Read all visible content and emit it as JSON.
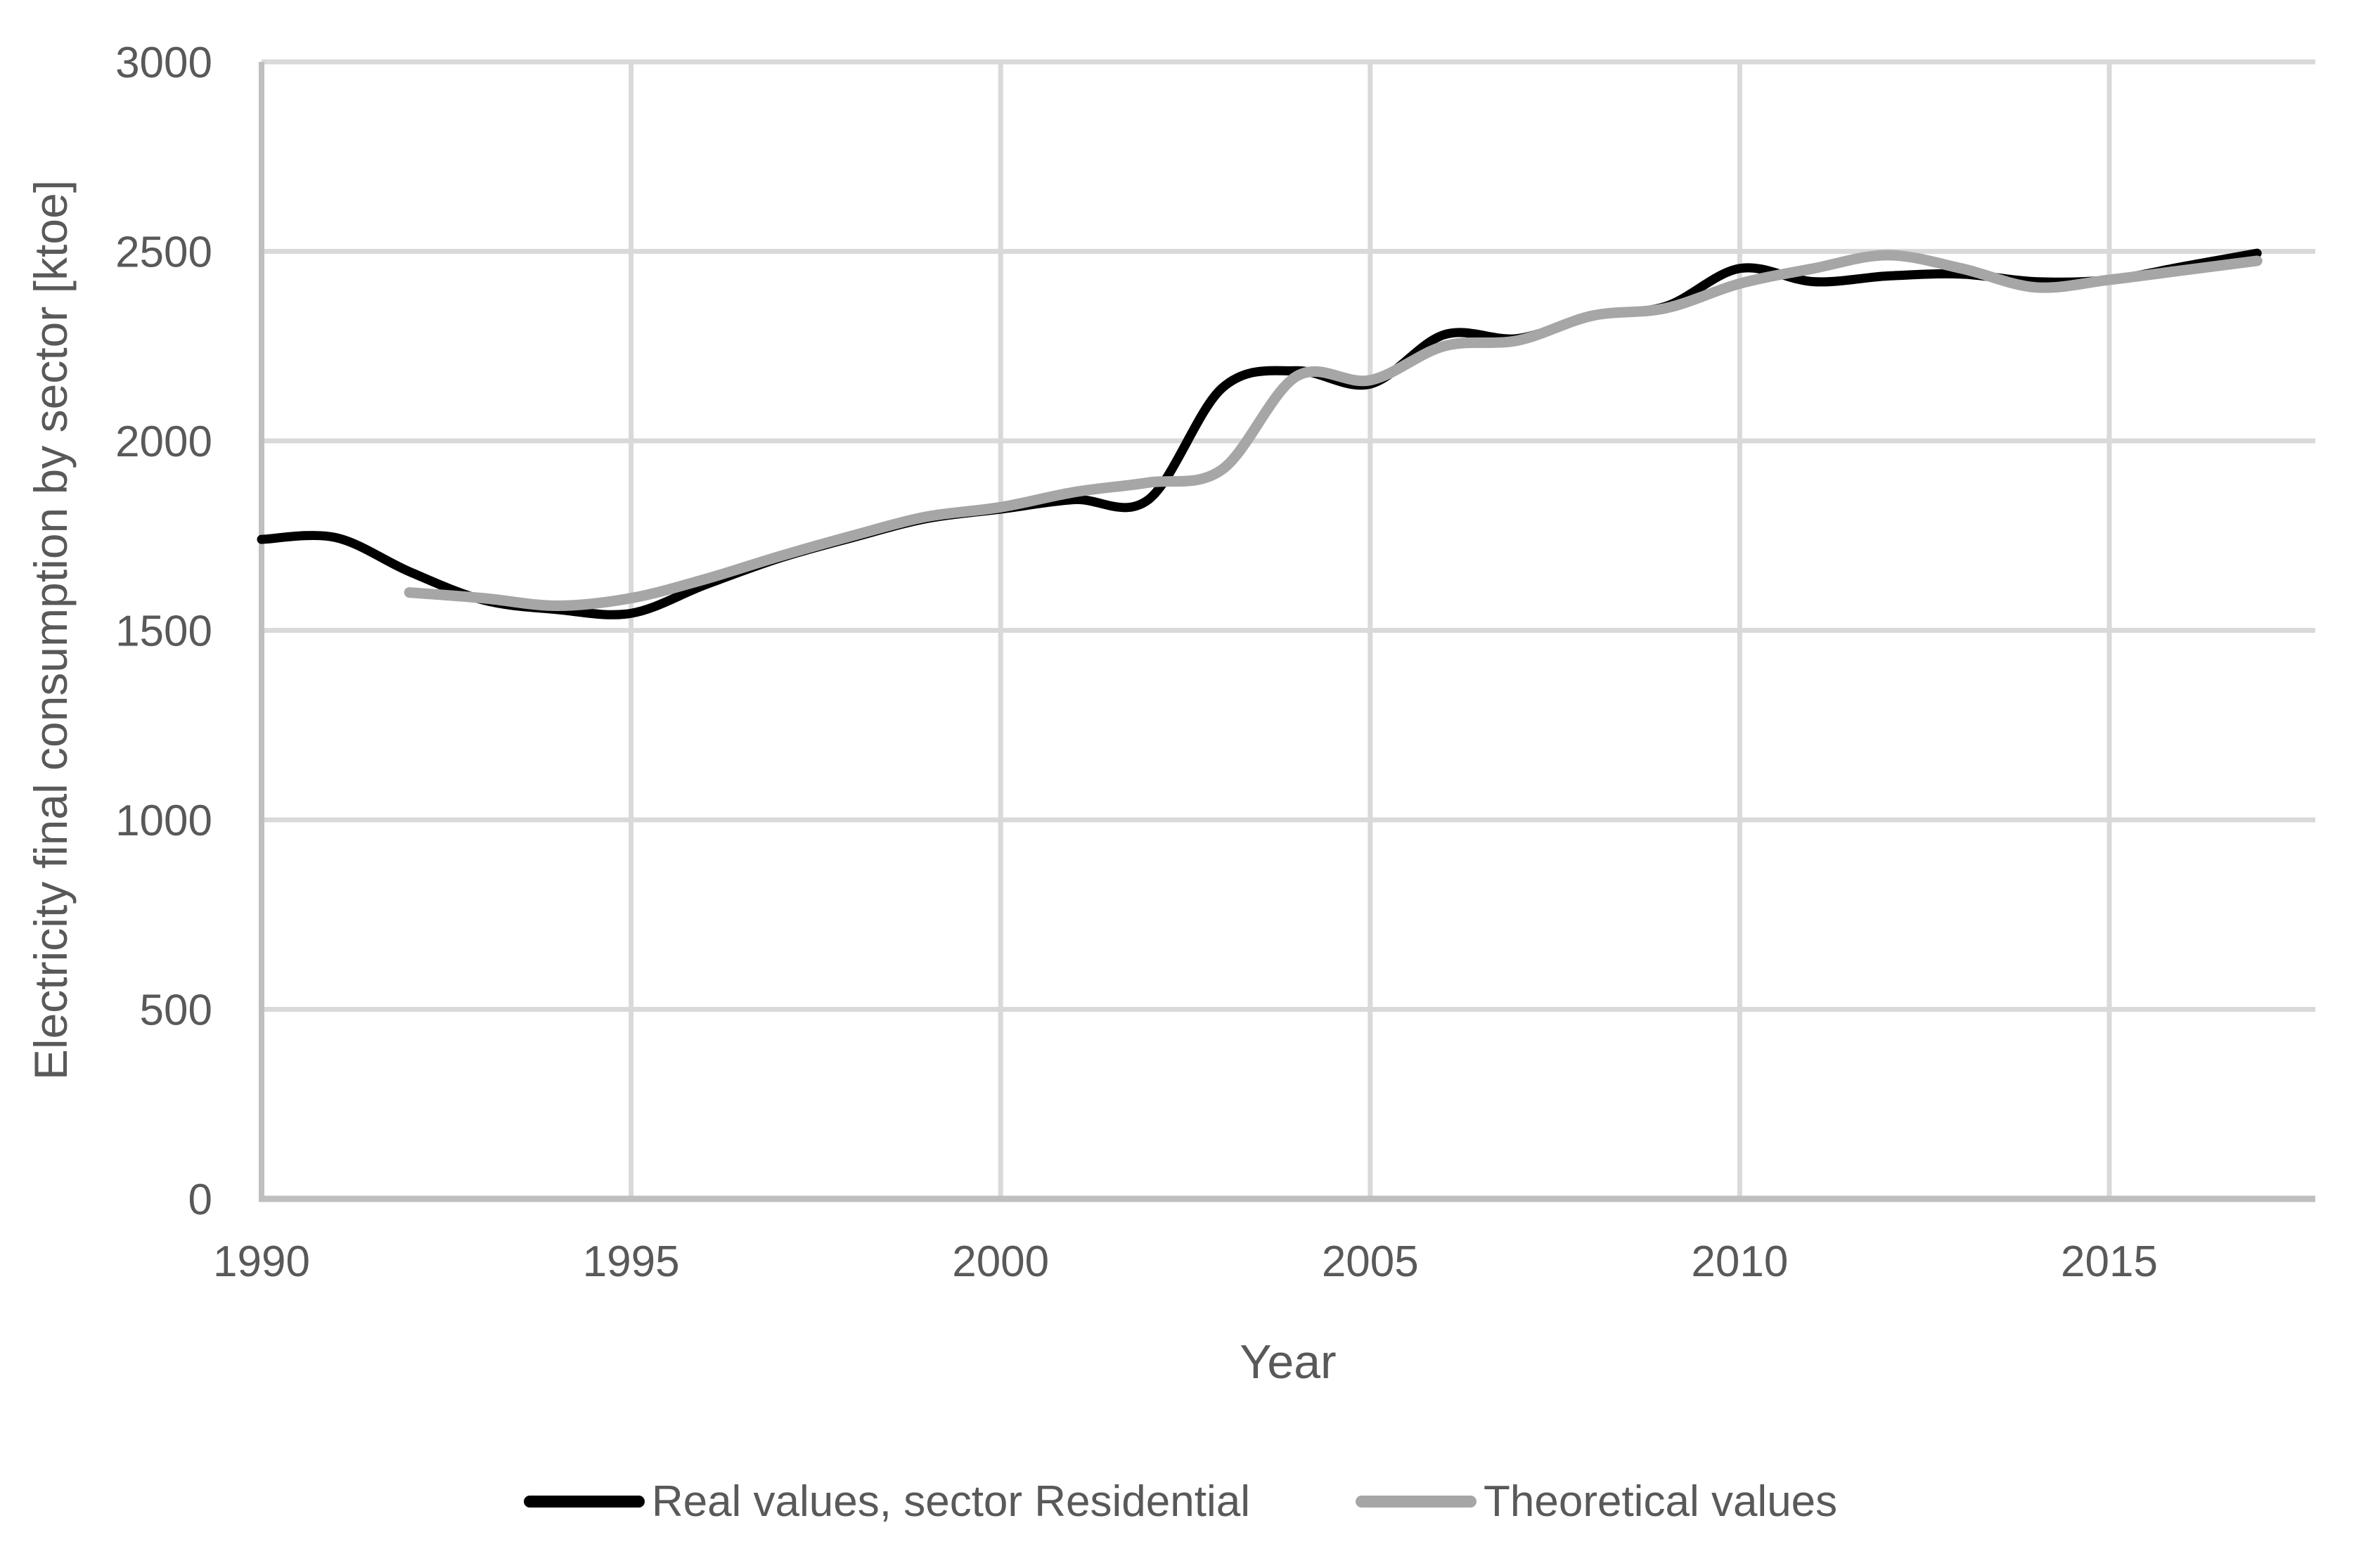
{
  "chart_data": {
    "type": "line",
    "title": "",
    "xlabel": "Year",
    "ylabel": "Electricity final consumption by sector [ktoe]",
    "xlim": [
      1990,
      2018
    ],
    "ylim": [
      0,
      3000
    ],
    "xticks": [
      1990,
      1995,
      2000,
      2005,
      2010,
      2015
    ],
    "yticks": [
      0,
      500,
      1000,
      1500,
      2000,
      2500,
      3000
    ],
    "grid": true,
    "smoothed_lines": true,
    "legend_position": "bottom",
    "series": [
      {
        "name": "Real values, sector Residential",
        "color": "#000000",
        "stroke_width": 13,
        "x": [
          1990,
          1991,
          1992,
          1993,
          1994,
          1995,
          1996,
          1997,
          1998,
          1999,
          2000,
          2001,
          2002,
          2003,
          2004,
          2005,
          2006,
          2007,
          2008,
          2009,
          2010,
          2011,
          2012,
          2013,
          2014,
          2015,
          2016,
          2017
        ],
        "values": [
          1740,
          1745,
          1655,
          1580,
          1555,
          1545,
          1620,
          1690,
          1745,
          1795,
          1820,
          1845,
          1845,
          2140,
          2185,
          2150,
          2280,
          2270,
          2330,
          2355,
          2455,
          2420,
          2435,
          2440,
          2420,
          2425,
          2460,
          2495
        ]
      },
      {
        "name": "Theoretical values",
        "color": "#A6A6A6",
        "stroke_width": 15,
        "x": [
          1992,
          1993,
          1994,
          1995,
          1996,
          1997,
          1998,
          1999,
          2000,
          2001,
          2002,
          2003,
          2004,
          2005,
          2006,
          2007,
          2008,
          2009,
          2010,
          2011,
          2012,
          2013,
          2014,
          2015,
          2016,
          2017
        ],
        "values": [
          1600,
          1585,
          1565,
          1585,
          1635,
          1695,
          1750,
          1800,
          1825,
          1865,
          1890,
          1925,
          2170,
          2160,
          2250,
          2265,
          2330,
          2350,
          2415,
          2455,
          2490,
          2455,
          2405,
          2425,
          2450,
          2475
        ]
      }
    ]
  },
  "colors": {
    "background": "#FFFFFF",
    "gridline": "#D9D9D9",
    "axis_line": "#BFBFBF",
    "text": "#595959",
    "series_real": "#000000",
    "series_theoretical": "#A6A6A6"
  },
  "legend": {
    "items": [
      {
        "label": "Real values, sector Residential",
        "color": "#000000"
      },
      {
        "label": "Theoretical values",
        "color": "#A6A6A6"
      }
    ]
  }
}
